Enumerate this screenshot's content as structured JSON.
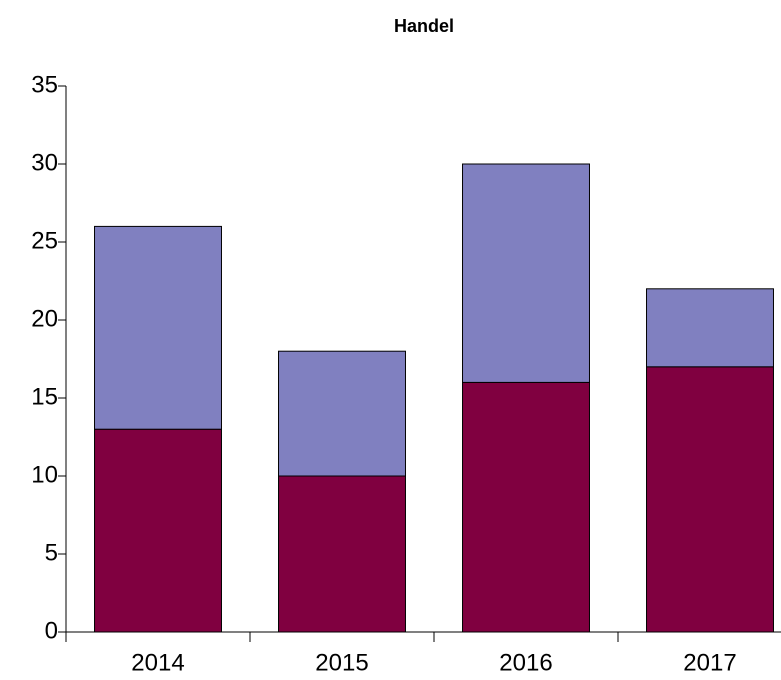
{
  "chart_data": {
    "type": "bar",
    "stacked": true,
    "title": "Handel",
    "categories": [
      "2014",
      "2015",
      "2016",
      "2017"
    ],
    "series": [
      {
        "color": "#800040",
        "values": [
          13,
          10,
          16,
          17
        ]
      },
      {
        "color": "#8080c0",
        "values": [
          13,
          8,
          14,
          5
        ]
      }
    ],
    "ylim": [
      0,
      35
    ],
    "yticks": [
      0,
      5,
      10,
      15,
      20,
      25,
      30,
      35
    ],
    "grid": false
  }
}
